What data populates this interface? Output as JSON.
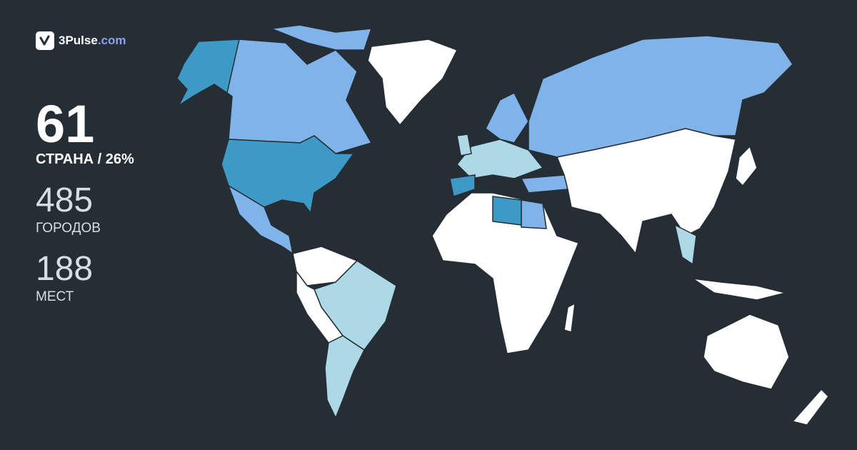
{
  "brand": {
    "name": "3Pulse",
    "domain": ".com",
    "logo_icon": "checkmark-pulse-icon"
  },
  "stats": {
    "countries": {
      "value": "61",
      "label": "СТРАНА / 26%"
    },
    "cities": {
      "value": "485",
      "label": "ГОРОДОВ"
    },
    "places": {
      "value": "188",
      "label": "МЕСТ"
    }
  },
  "colors": {
    "background": "#252d35",
    "visited_high": "#3d9ac4",
    "visited_mid": "#7fb3ea",
    "visited_low": "#add8e6",
    "unvisited": "#ffffff"
  }
}
